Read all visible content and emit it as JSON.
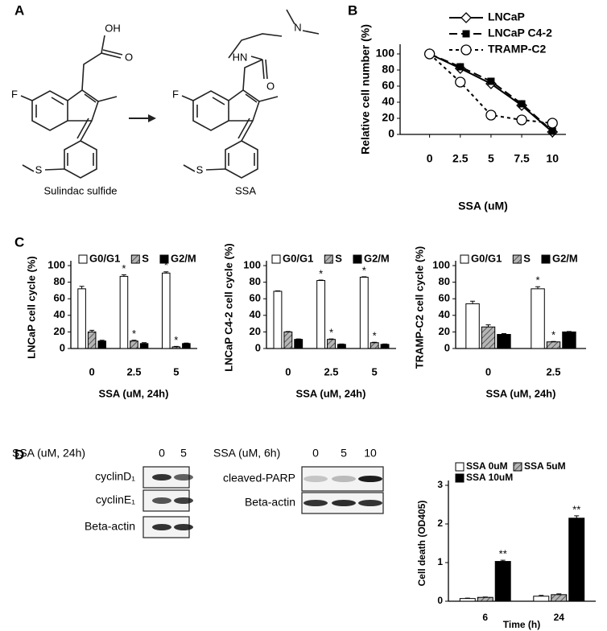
{
  "panels": [
    "A",
    "B",
    "C",
    "D"
  ],
  "structures": [
    {
      "name": "Sulindac sulfide",
      "atoms": [
        "OH",
        "O",
        "F",
        "S"
      ]
    },
    {
      "name": "SSA",
      "atoms": [
        "N",
        "HN",
        "O",
        "F",
        "S"
      ]
    }
  ],
  "blots": [
    {
      "header": "SSA (uM, 24h)",
      "lanes": [
        "0",
        "5"
      ],
      "rows": [
        "cyclinD₁",
        "cyclinE₁",
        "Beta-actin"
      ]
    },
    {
      "header": "SSA (uM, 6h)",
      "lanes": [
        "0",
        "5",
        "10"
      ],
      "rows": [
        "cleaved-PARP",
        "Beta-actin"
      ]
    }
  ],
  "chart_data": [
    {
      "type": "line",
      "x": [
        0,
        2.5,
        5,
        7.5,
        10
      ],
      "xlim": [
        -2.4,
        11.1
      ],
      "xticks": [
        0,
        2.5,
        5,
        7.5,
        10
      ],
      "xlabel": "SSA (uM)",
      "ylabel": "Relative cell number (%)",
      "ylim": [
        0,
        106
      ],
      "yticks": [
        0,
        20,
        40,
        60,
        80,
        100
      ],
      "legend": "upper right",
      "series": [
        {
          "name": "LNCaP",
          "color": "#000000",
          "marker": "diamond",
          "dash": "solid",
          "values": [
            100,
            82,
            63,
            36,
            3
          ]
        },
        {
          "name": "LNCaP C4-2",
          "color": "#000000",
          "marker": "square",
          "filled": true,
          "dash": "dashed",
          "values": [
            100,
            84,
            66,
            38,
            4
          ]
        },
        {
          "name": "TRAMP-C2",
          "color": "#000000",
          "marker": "circle",
          "dash": "dotted",
          "values": [
            100,
            65,
            24,
            18,
            14
          ]
        }
      ]
    },
    {
      "type": "bar",
      "categories": [
        "0",
        "2.5",
        "5"
      ],
      "xlabel": "SSA (uM, 24h)",
      "ylabel": "LNCaP cell cycle (%)",
      "ylim": [
        0,
        100
      ],
      "yticks": [
        0,
        20,
        40,
        60,
        80,
        100
      ],
      "legend": "top",
      "series": [
        {
          "name": "G0/G1",
          "color": "#ffffff",
          "values": [
            72,
            87,
            91
          ],
          "errors": [
            3,
            2,
            1.5
          ],
          "significance": [
            null,
            "*",
            "*"
          ]
        },
        {
          "name": "S",
          "color": "#b5b5b5",
          "pattern": "hatch",
          "values": [
            20,
            9,
            2
          ],
          "errors": [
            2,
            1,
            0.5
          ],
          "significance": [
            null,
            "*",
            "*"
          ]
        },
        {
          "name": "G2/M",
          "color": "#000000",
          "values": [
            9,
            6,
            6
          ],
          "errors": [
            1,
            1,
            0.5
          ]
        }
      ]
    },
    {
      "type": "bar",
      "categories": [
        "0",
        "2.5",
        "5"
      ],
      "xlabel": "SSA (uM, 24h)",
      "ylabel": "LNCaP C4-2 cell cycle (%)",
      "ylim": [
        0,
        100
      ],
      "yticks": [
        0,
        20,
        40,
        60,
        80,
        100
      ],
      "legend": "top",
      "series": [
        {
          "name": "G0/G1",
          "color": "#ffffff",
          "values": [
            69,
            82,
            86
          ],
          "errors": [
            0.5,
            0.5,
            0.5
          ],
          "significance": [
            null,
            "*",
            "*"
          ]
        },
        {
          "name": "S",
          "color": "#b5b5b5",
          "pattern": "hatch",
          "values": [
            20,
            11,
            7
          ],
          "errors": [
            0.5,
            0.5,
            0.5
          ],
          "significance": [
            null,
            "*",
            "*"
          ]
        },
        {
          "name": "G2/M",
          "color": "#000000",
          "values": [
            11,
            5,
            5
          ],
          "errors": [
            0.5,
            0.5,
            0.5
          ]
        }
      ]
    },
    {
      "type": "bar",
      "categories": [
        "0",
        "2.5"
      ],
      "xlabel": "SSA (uM, 24h)",
      "ylabel": "TRAMP-C2 cell cycle (%)",
      "ylim": [
        0,
        100
      ],
      "yticks": [
        0,
        20,
        40,
        60,
        80,
        100
      ],
      "legend": "top",
      "series": [
        {
          "name": "G0/G1",
          "color": "#ffffff",
          "values": [
            54,
            72
          ],
          "errors": [
            3,
            2.5
          ],
          "significance": [
            null,
            "*"
          ]
        },
        {
          "name": "S",
          "color": "#b5b5b5",
          "pattern": "hatch",
          "values": [
            26,
            8
          ],
          "errors": [
            2.5,
            0.5
          ],
          "significance": [
            null,
            "*"
          ]
        },
        {
          "name": "G2/M",
          "color": "#000000",
          "values": [
            17,
            20
          ],
          "errors": [
            1,
            0.5
          ]
        }
      ]
    },
    {
      "type": "bar",
      "categories": [
        "6",
        "24"
      ],
      "xlabel": "Time (h)",
      "ylabel": "Cell death (OD405)",
      "ylim": [
        0,
        3
      ],
      "yticks": [
        0,
        1,
        2,
        3
      ],
      "legend": "top",
      "series": [
        {
          "name": "SSA 0uM",
          "color": "#ffffff",
          "values": [
            0.07,
            0.13
          ],
          "errors": [
            0.01,
            0.02
          ]
        },
        {
          "name": "SSA 5uM",
          "color": "#b5b5b5",
          "pattern": "hatch",
          "values": [
            0.1,
            0.17
          ],
          "errors": [
            0.01,
            0.02
          ]
        },
        {
          "name": "SSA 10uM",
          "color": "#000000",
          "values": [
            1.03,
            2.15
          ],
          "errors": [
            0.03,
            0.06
          ],
          "significance": [
            "**",
            "**"
          ]
        }
      ]
    }
  ]
}
